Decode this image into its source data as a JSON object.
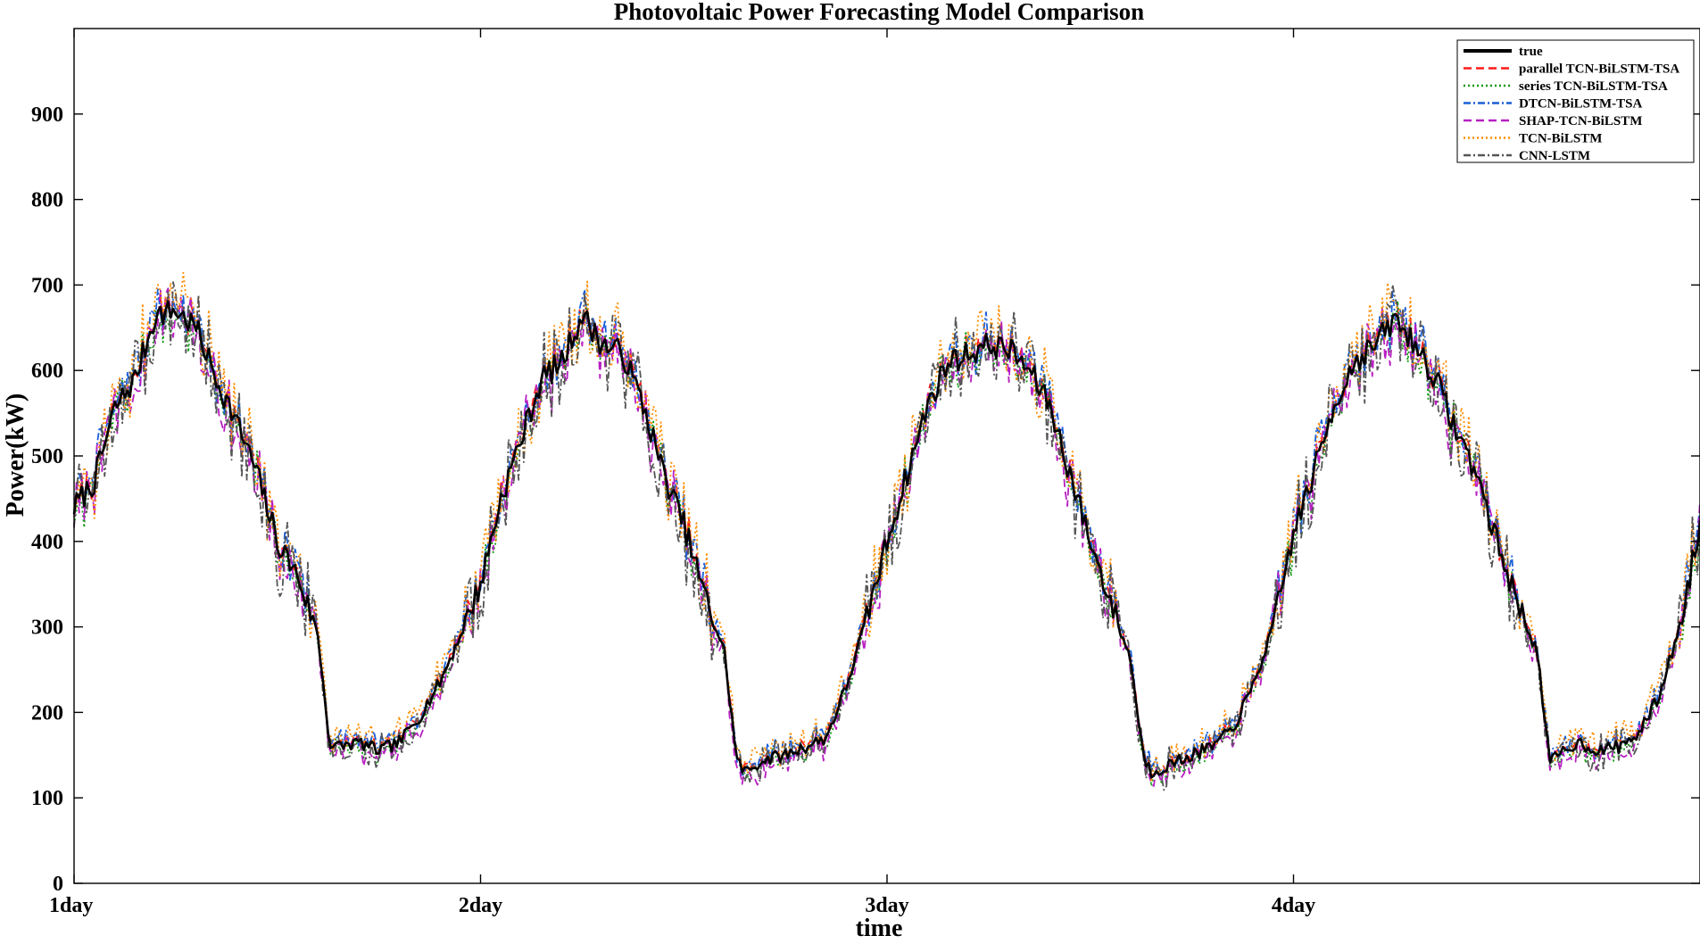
{
  "chart_data": {
    "type": "line",
    "title": "Photovoltaic Power Forecasting Model Comparison",
    "xlabel": "time",
    "ylabel": "Power(kW)",
    "xlim": [
      1,
      5.0
    ],
    "ylim": [
      0,
      1000
    ],
    "x_ticks": [
      {
        "value": 1,
        "label": "1day"
      },
      {
        "value": 2,
        "label": "2day"
      },
      {
        "value": 3,
        "label": "3day"
      },
      {
        "value": 4,
        "label": "4day"
      }
    ],
    "y_ticks": [
      {
        "value": 0,
        "label": "0"
      },
      {
        "value": 100,
        "label": "100"
      },
      {
        "value": 200,
        "label": "200"
      },
      {
        "value": 300,
        "label": "300"
      },
      {
        "value": 400,
        "label": "400"
      },
      {
        "value": 500,
        "label": "500"
      },
      {
        "value": 600,
        "label": "600"
      },
      {
        "value": 700,
        "label": "700"
      },
      {
        "value": 800,
        "label": "800"
      },
      {
        "value": 900,
        "label": "900"
      }
    ],
    "legend_position": "top-right",
    "true_curve": {
      "x": [
        1.0,
        1.05,
        1.1,
        1.15,
        1.2,
        1.25,
        1.3,
        1.35,
        1.4,
        1.45,
        1.5,
        1.55,
        1.6,
        1.63,
        1.65,
        1.7,
        1.75,
        1.8,
        1.85,
        1.9,
        1.95,
        2.0,
        2.05,
        2.1,
        2.15,
        2.2,
        2.25,
        2.3,
        2.35,
        2.4,
        2.45,
        2.5,
        2.55,
        2.6,
        2.63,
        2.65,
        2.7,
        2.75,
        2.8,
        2.85,
        2.9,
        2.95,
        3.0,
        3.05,
        3.1,
        3.15,
        3.2,
        3.25,
        3.3,
        3.35,
        3.4,
        3.45,
        3.5,
        3.55,
        3.6,
        3.63,
        3.65,
        3.7,
        3.75,
        3.8,
        3.85,
        3.9,
        3.95,
        4.0,
        4.05,
        4.1,
        4.15,
        4.2,
        4.25,
        4.3,
        4.35,
        4.4,
        4.45,
        4.5,
        4.55,
        4.6,
        4.63,
        4.65,
        4.7,
        4.75,
        4.8,
        4.85,
        4.9,
        4.95,
        5.0
      ],
      "y": [
        440,
        470,
        555,
        590,
        665,
        670,
        650,
        590,
        540,
        480,
        400,
        360,
        290,
        160,
        160,
        165,
        155,
        165,
        195,
        235,
        290,
        350,
        450,
        520,
        590,
        610,
        665,
        630,
        620,
        560,
        480,
        420,
        340,
        270,
        145,
        130,
        145,
        150,
        160,
        170,
        230,
        310,
        400,
        480,
        560,
        610,
        620,
        630,
        625,
        600,
        560,
        480,
        400,
        330,
        260,
        150,
        130,
        140,
        150,
        160,
        180,
        230,
        300,
        410,
        480,
        560,
        610,
        630,
        660,
        630,
        590,
        530,
        480,
        400,
        330,
        270,
        140,
        150,
        165,
        155,
        160,
        175,
        220,
        300,
        420
      ]
    },
    "series": [
      {
        "name": "true",
        "color": "#000000",
        "style": "solid",
        "offset": 0,
        "noise": 0
      },
      {
        "name": "parallel TCN-BiLSTM-TSA",
        "color": "#ff1a1a",
        "style": "dashed",
        "offset": 3,
        "noise": 10
      },
      {
        "name": "series TCN-BiLSTM-TSA",
        "color": "#119911",
        "style": "dotted",
        "offset": -4,
        "noise": 22
      },
      {
        "name": "DTCN-BiLSTM-TSA",
        "color": "#1a5fd6",
        "style": "dashdot",
        "offset": 5,
        "noise": 24
      },
      {
        "name": "SHAP-TCN-BiLSTM",
        "color": "#b81fc2",
        "style": "dashed",
        "offset": -6,
        "noise": 30
      },
      {
        "name": "TCN-BiLSTM",
        "color": "#ff8c00",
        "style": "dotted",
        "offset": 8,
        "noise": 38
      },
      {
        "name": "CNN-LSTM",
        "color": "#555555",
        "style": "dashdot",
        "offset": -3,
        "noise": 44
      }
    ]
  }
}
